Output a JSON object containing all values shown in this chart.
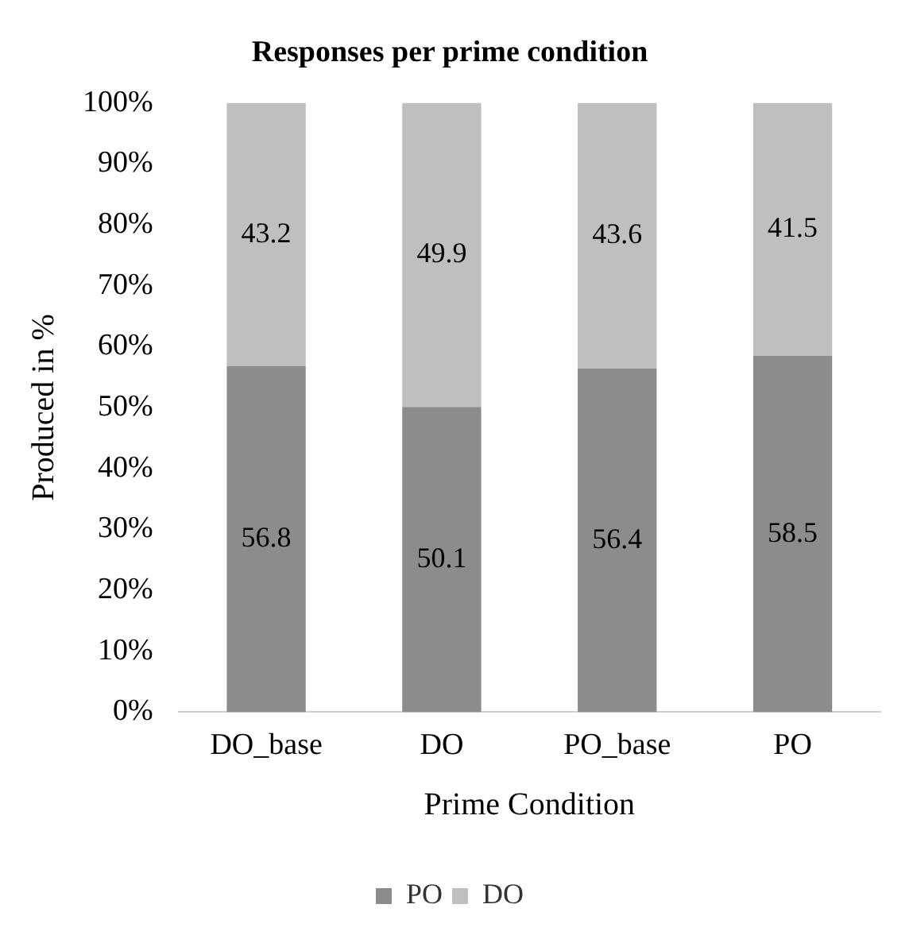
{
  "chart_data": {
    "type": "bar",
    "title": "Responses per prime condition",
    "xlabel": "Prime Condition",
    "ylabel": "Produced in %",
    "categories": [
      "DO_base",
      "DO",
      "PO_base",
      "PO"
    ],
    "series": [
      {
        "name": "PO",
        "color": "#8c8c8c",
        "values": [
          56.8,
          50.1,
          56.4,
          58.5
        ]
      },
      {
        "name": "DO",
        "color": "#bfbfbf",
        "values": [
          43.2,
          49.9,
          43.6,
          41.5
        ]
      }
    ],
    "stacked": true,
    "data_labels": true,
    "legend": "bottom",
    "grid": false,
    "ylim": [
      0,
      100
    ],
    "yticks": [
      {
        "value": 0,
        "label": "0%"
      },
      {
        "value": 10,
        "label": "10%"
      },
      {
        "value": 20,
        "label": "20%"
      },
      {
        "value": 30,
        "label": "30%"
      },
      {
        "value": 40,
        "label": "40%"
      },
      {
        "value": 50,
        "label": "50%"
      },
      {
        "value": 60,
        "label": "60%"
      },
      {
        "value": 70,
        "label": "70%"
      },
      {
        "value": 80,
        "label": "80%"
      },
      {
        "value": 90,
        "label": "90%"
      },
      {
        "value": 100,
        "label": "100%"
      }
    ]
  }
}
